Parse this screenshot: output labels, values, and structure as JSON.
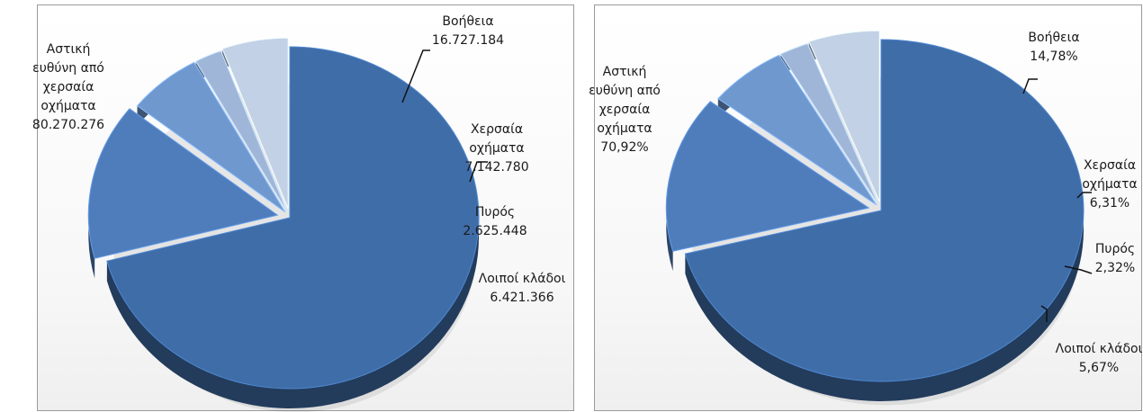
{
  "chart_data": [
    {
      "type": "pie",
      "unit": "absolute",
      "slices": [
        {
          "label": [
            "Αστική",
            "ευθύνη από",
            "χερσαία",
            "οχήματα"
          ],
          "value": 80270276,
          "value_text": "80.270.276",
          "color": "#3f6da8"
        },
        {
          "label": [
            "Βοήθεια"
          ],
          "value": 16727184,
          "value_text": "16.727.184",
          "color": "#4f7dbb"
        },
        {
          "label": [
            "Χερσαία",
            "οχήματα"
          ],
          "value": 7142780,
          "value_text": "7.142.780",
          "color": "#6f98cf"
        },
        {
          "label": [
            "Πυρός"
          ],
          "value": 2625448,
          "value_text": "2.625.448",
          "color": "#9fb6d8"
        },
        {
          "label": [
            "Λοιποί κλάδοι"
          ],
          "value": 6421366,
          "value_text": "6.421.366",
          "color": "#c3d1e6"
        }
      ]
    },
    {
      "type": "pie",
      "unit": "percent",
      "slices": [
        {
          "label": [
            "Αστική",
            "ευθύνη από",
            "χερσαία",
            "οχήματα"
          ],
          "value": 70.92,
          "value_text": "70,92%",
          "color": "#3f6da8"
        },
        {
          "label": [
            "Βοήθεια"
          ],
          "value": 14.78,
          "value_text": "14,78%",
          "color": "#4f7dbb"
        },
        {
          "label": [
            "Χερσαία",
            "οχήματα"
          ],
          "value": 6.31,
          "value_text": "6,31%",
          "color": "#6f98cf"
        },
        {
          "label": [
            "Πυρός"
          ],
          "value": 2.32,
          "value_text": "2,32%",
          "color": "#9fb6d8"
        },
        {
          "label": [
            "Λοιποί κλάδοι"
          ],
          "value": 5.67,
          "value_text": "5,67%",
          "color": "#c3d1e6"
        }
      ]
    }
  ]
}
